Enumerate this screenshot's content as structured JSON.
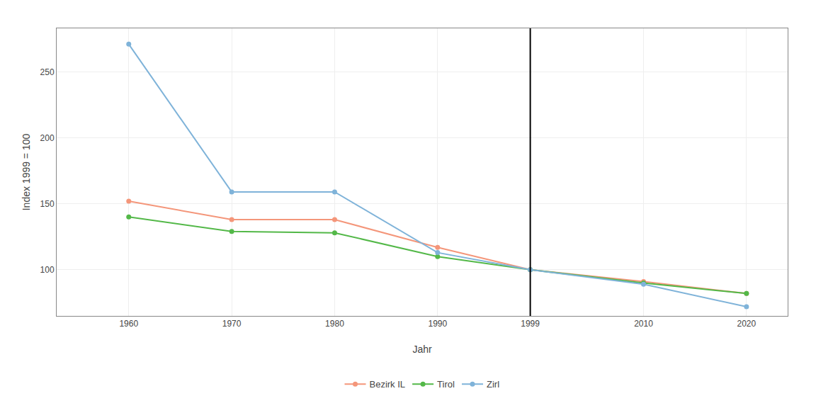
{
  "chart_data": {
    "type": "line",
    "x_label": "Jahr",
    "y_label": "Index 1999 = 100",
    "x": [
      1960,
      1970,
      1980,
      1990,
      1999,
      2010,
      2020
    ],
    "series": [
      {
        "name": "Bezirk IL",
        "color": "#F4967A",
        "values": [
          152,
          138,
          138,
          117,
          100,
          91,
          82
        ]
      },
      {
        "name": "Tirol",
        "color": "#53B848",
        "values": [
          140,
          129,
          128,
          110,
          100,
          90,
          82
        ]
      },
      {
        "name": "Zirl",
        "color": "#7FB3D9",
        "values": [
          271,
          159,
          159,
          113,
          100,
          89,
          72
        ]
      }
    ],
    "xlim": [
      1953,
      2024
    ],
    "xticks": [
      1960,
      1970,
      1980,
      1990,
      1999,
      2010,
      2020
    ],
    "ylim": [
      65,
      283
    ],
    "yticks": [
      100,
      150,
      200,
      250
    ],
    "vline": 1999,
    "grid": true,
    "legend": "bottom",
    "marker": "circle",
    "line_style": "solid"
  }
}
